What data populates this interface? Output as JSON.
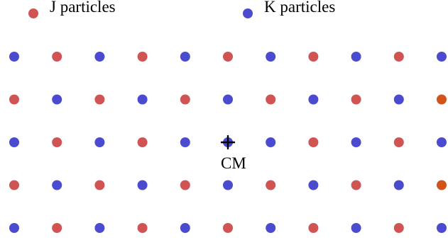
{
  "legend": {
    "j_label": "J particles",
    "k_label": "K particles"
  },
  "colors": {
    "j": "#d05454",
    "k": "#4b4bcf",
    "edge": "#d1541b",
    "marker": "#000000"
  },
  "grid": {
    "rows": [
      [
        "K",
        "J",
        "K",
        "J",
        "K",
        "J",
        "K",
        "J",
        "K",
        "J",
        "K"
      ],
      [
        "J",
        "K",
        "J",
        "K",
        "J",
        "K",
        "J",
        "K",
        "J",
        "K",
        "edge"
      ],
      [
        "K",
        "J",
        "K",
        "J",
        "K",
        "cm",
        "K",
        "J",
        "K",
        "J",
        "K"
      ],
      [
        "J",
        "K",
        "J",
        "K",
        "J",
        "K",
        "J",
        "K",
        "J",
        "K",
        "edge"
      ],
      [
        "K",
        "J",
        "K",
        "J",
        "K",
        "J",
        "K",
        "J",
        "K",
        "J",
        "K"
      ]
    ]
  },
  "cm": {
    "label": "CM"
  }
}
